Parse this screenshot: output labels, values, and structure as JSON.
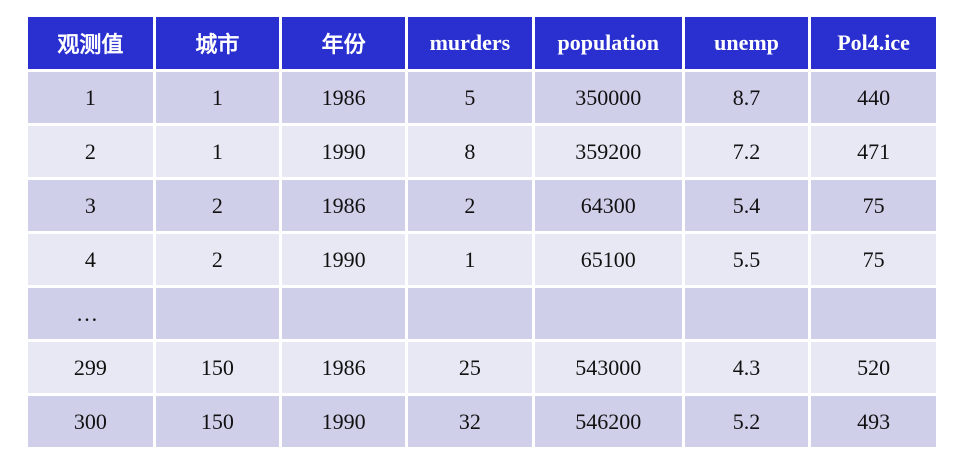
{
  "table": {
    "headers": [
      "观测值",
      "城市",
      "年份",
      "murders",
      "population",
      "unemp",
      "Pol4.ice"
    ],
    "rows": [
      [
        "1",
        "1",
        "1986",
        "5",
        "350000",
        "8.7",
        "440"
      ],
      [
        "2",
        "1",
        "1990",
        "8",
        "359200",
        "7.2",
        "471"
      ],
      [
        "3",
        "2",
        "1986",
        "2",
        "64300",
        "5.4",
        "75"
      ],
      [
        "4",
        "2",
        "1990",
        "1",
        "65100",
        "5.5",
        "75"
      ],
      [
        "…",
        "",
        "",
        "",
        "",
        "",
        ""
      ],
      [
        "299",
        "150",
        "1986",
        "25",
        "543000",
        "4.3",
        "520"
      ],
      [
        "300",
        "150",
        "1990",
        "32",
        "546200",
        "5.2",
        "493"
      ]
    ]
  },
  "colors": {
    "header_bg": "#2a2fd0",
    "row_odd": "#cfcfea",
    "row_even": "#e8e8f4"
  }
}
